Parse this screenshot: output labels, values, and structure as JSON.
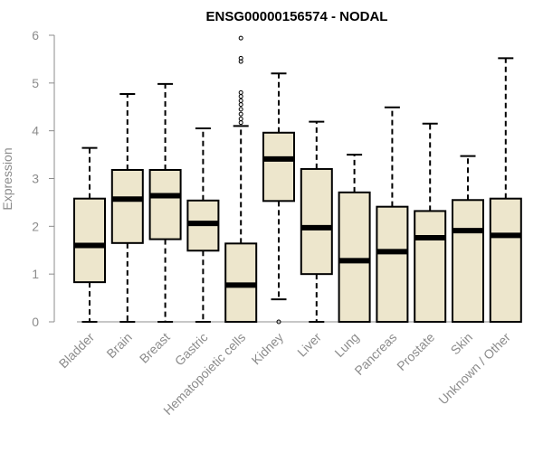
{
  "chart_data": {
    "type": "boxplot",
    "title": "ENSG00000156574 - NODAL",
    "xlabel": "",
    "ylabel": "Expression",
    "ylim": [
      0,
      6
    ],
    "yticks": [
      0,
      1,
      2,
      3,
      4,
      5,
      6
    ],
    "box_fill": "#ede6cc",
    "box_stroke": "#000000",
    "axis_color": "#8c8c8c",
    "categories": [
      "Bladder",
      "Brain",
      "Breast",
      "Gastric",
      "Hematopoietic cells",
      "Kidney",
      "Liver",
      "Lung",
      "Pancreas",
      "Prostate",
      "Skin",
      "Unknown / Other"
    ],
    "boxes": [
      {
        "min": 0.0,
        "q1": 0.83,
        "median": 1.6,
        "q3": 2.58,
        "max": 3.64,
        "outliers": []
      },
      {
        "min": 0.0,
        "q1": 1.65,
        "median": 2.57,
        "q3": 3.18,
        "max": 4.77,
        "outliers": []
      },
      {
        "min": 0.0,
        "q1": 1.73,
        "median": 2.64,
        "q3": 3.18,
        "max": 4.98,
        "outliers": []
      },
      {
        "min": 0.0,
        "q1": 1.49,
        "median": 2.06,
        "q3": 2.54,
        "max": 4.05,
        "outliers": []
      },
      {
        "min": 0.0,
        "q1": 0.0,
        "median": 0.77,
        "q3": 1.64,
        "max": 4.1,
        "outliers": [
          4.17,
          4.25,
          4.35,
          4.45,
          4.55,
          4.63,
          4.72,
          4.8,
          5.45,
          5.52,
          5.94
        ]
      },
      {
        "min": 0.47,
        "q1": 2.53,
        "median": 3.41,
        "q3": 3.96,
        "max": 5.2,
        "outliers": [
          0.0
        ]
      },
      {
        "min": 0.0,
        "q1": 1.0,
        "median": 1.97,
        "q3": 3.2,
        "max": 4.19,
        "outliers": []
      },
      {
        "min": 0.0,
        "q1": 0.0,
        "median": 1.28,
        "q3": 2.71,
        "max": 3.5,
        "outliers": []
      },
      {
        "min": 0.0,
        "q1": 0.0,
        "median": 1.47,
        "q3": 2.41,
        "max": 4.49,
        "outliers": []
      },
      {
        "min": 0.0,
        "q1": 0.0,
        "median": 1.76,
        "q3": 2.32,
        "max": 4.15,
        "outliers": []
      },
      {
        "min": 0.0,
        "q1": 0.0,
        "median": 1.91,
        "q3": 2.55,
        "max": 3.47,
        "outliers": []
      },
      {
        "min": 0.0,
        "q1": 0.0,
        "median": 1.81,
        "q3": 2.58,
        "max": 5.52,
        "outliers": []
      }
    ]
  }
}
